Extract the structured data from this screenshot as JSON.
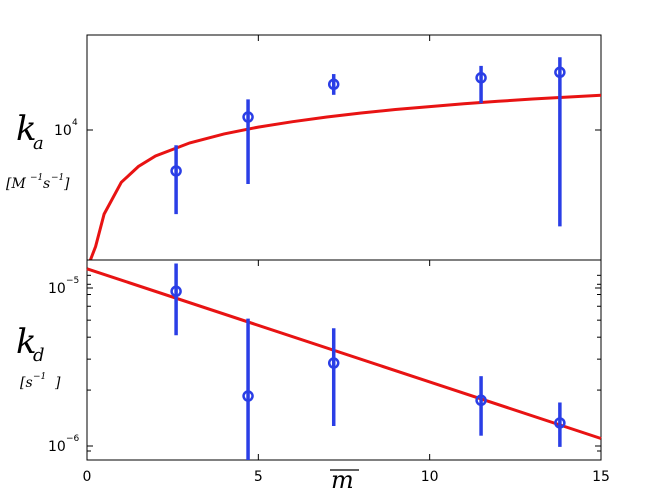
{
  "chart_data": [
    {
      "type": "scatter",
      "panel": "top",
      "ylabel_symbol": "k",
      "ylabel_subscript": "a",
      "ylabel_units": [
        "[M",
        "−1",
        "s",
        "−1",
        "]"
      ],
      "yscale": "log",
      "ylim": [
        2900,
        25000
      ],
      "xlim": [
        0,
        15
      ],
      "ytick_base": "10",
      "ytick_exponent": "4",
      "grid": false,
      "series": [
        {
          "kind": "errorbar",
          "color": "#2a3ee6",
          "points": [
            {
              "x": 2.6,
              "y": 6800,
              "ylo": 4500,
              "yhi": 8700
            },
            {
              "x": 4.7,
              "y": 11400,
              "ylo": 6000,
              "yhi": 13500
            },
            {
              "x": 7.2,
              "y": 15600,
              "ylo": 14100,
              "yhi": 17200
            },
            {
              "x": 11.5,
              "y": 16600,
              "ylo": 13000,
              "yhi": 18600
            },
            {
              "x": 13.8,
              "y": 17500,
              "ylo": 4000,
              "yhi": 20200
            }
          ]
        },
        {
          "kind": "fit_line",
          "color": "#e81313",
          "model": "a_plus_b_log_x",
          "x": [
            0.1,
            0.25,
            0.5,
            1,
            1.5,
            2,
            3,
            4,
            5,
            6,
            7,
            8,
            9,
            10,
            11,
            12,
            13,
            14,
            15
          ],
          "y": [
            2800,
            3300,
            4500,
            6100,
            7100,
            7850,
            8900,
            9700,
            10350,
            10900,
            11400,
            11850,
            12250,
            12600,
            12950,
            13250,
            13550,
            13800,
            14050
          ]
        }
      ]
    },
    {
      "type": "scatter",
      "panel": "bottom",
      "ylabel_symbol": "k",
      "ylabel_subscript": "d",
      "ylabel_units": [
        "[s",
        "−1",
        "]"
      ],
      "yscale": "log",
      "ylim": [
        8e-07,
        1.1e-05
      ],
      "xlim": [
        0,
        15
      ],
      "xlabel": "m",
      "xlabel_overline": true,
      "xticks": [
        "0",
        "5",
        "10",
        "15"
      ],
      "ytick_labels": [
        {
          "base": "10",
          "exponent": "−5",
          "value": 1e-05
        },
        {
          "base": "10",
          "exponent": "−6",
          "value": 1e-06
        }
      ],
      "grid": false,
      "series": [
        {
          "kind": "errorbar",
          "color": "#2a3ee6",
          "points": [
            {
              "x": 2.6,
              "y": 7.3e-06,
              "ylo": 4.1e-06,
              "yhi": 1.05e-05
            },
            {
              "x": 4.7,
              "y": 1.85e-06,
              "ylo": 8e-07,
              "yhi": 5.1e-06
            },
            {
              "x": 7.2,
              "y": 2.85e-06,
              "ylo": 1.25e-06,
              "yhi": 4.5e-06
            },
            {
              "x": 11.5,
              "y": 1.75e-06,
              "ylo": 1.1e-06,
              "yhi": 2.4e-06
            },
            {
              "x": 13.8,
              "y": 1.3e-06,
              "ylo": 9.5e-07,
              "yhi": 1.7e-06
            }
          ]
        },
        {
          "kind": "fit_line",
          "color": "#e81313",
          "model": "exponential",
          "x": [
            0,
            15
          ],
          "y": [
            9.8e-06,
            1.06e-06
          ]
        }
      ]
    }
  ]
}
